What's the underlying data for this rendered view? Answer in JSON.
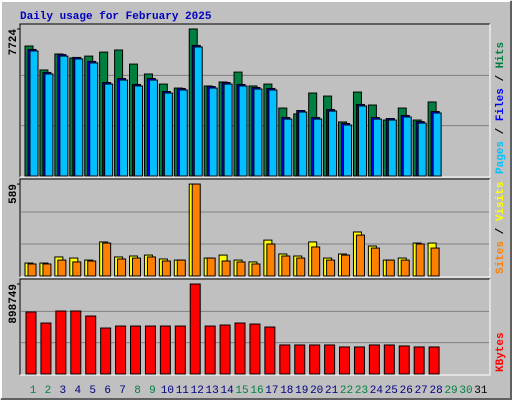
{
  "chart_data": [
    {
      "type": "bar",
      "title": "Daily usage for February 2025",
      "legend_separator": " / ",
      "ylim": [
        0,
        7934
      ],
      "yticks": [
        7724
      ],
      "series": [
        {
          "name": "Hits",
          "color": "#008040",
          "values": [
            6830,
            5570,
            6410,
            6200,
            6300,
            6510,
            6620,
            5880,
            5360,
            4830,
            4620,
            7724,
            4730,
            4940,
            5460,
            4730,
            4830,
            3570,
            3260,
            4360,
            4200,
            2840,
            4410,
            3730,
            2940,
            3570,
            2940,
            3890,
            null,
            null,
            null
          ]
        },
        {
          "name": "Files",
          "color": "#0000ff",
          "values": [
            6650,
            5440,
            6380,
            6230,
            6020,
            4910,
            5120,
            4810,
            5120,
            4440,
            4600,
            6860,
            4700,
            4910,
            4810,
            4650,
            4600,
            3070,
            3440,
            3070,
            3490,
            2760,
            3760,
            3070,
            3020,
            3180,
            2860,
            3390,
            null,
            null,
            null
          ]
        },
        {
          "name": "Pages",
          "color": "#00c0ff",
          "values": [
            6570,
            5360,
            6300,
            6150,
            5940,
            4830,
            5040,
            4730,
            5040,
            4360,
            4520,
            6780,
            4620,
            4830,
            4730,
            4570,
            4520,
            2990,
            3360,
            2990,
            3410,
            2680,
            3680,
            2990,
            2940,
            3100,
            2780,
            3310,
            null,
            null,
            null
          ]
        }
      ]
    },
    {
      "type": "bar",
      "legend_separator": " / ",
      "ylim": [
        0,
        615
      ],
      "yticks": [
        589
      ],
      "series": [
        {
          "name": "Visits",
          "color": "#ffff00",
          "values": [
            83,
            83,
            122,
            115,
            102,
            218,
            122,
            128,
            134,
            109,
            102,
            589,
            115,
            134,
            102,
            90,
            230,
            141,
            128,
            218,
            115,
            141,
            282,
            192,
            102,
            115,
            211,
            211,
            null,
            null,
            null
          ]
        },
        {
          "name": "Sites",
          "color": "#ff8000",
          "values": [
            77,
            77,
            102,
            90,
            96,
            211,
            109,
            115,
            122,
            96,
            102,
            589,
            115,
            96,
            90,
            77,
            205,
            128,
            115,
            186,
            102,
            134,
            262,
            179,
            102,
            102,
            205,
            179,
            null,
            null,
            null
          ]
        }
      ]
    },
    {
      "type": "bar",
      "ylim": [
        0,
        938700
      ],
      "yticks": [
        898749
      ],
      "categories": [
        "1",
        "2",
        "3",
        "4",
        "5",
        "6",
        "7",
        "8",
        "9",
        "10",
        "11",
        "12",
        "13",
        "14",
        "15",
        "16",
        "17",
        "18",
        "19",
        "20",
        "21",
        "22",
        "23",
        "24",
        "25",
        "26",
        "27",
        "28",
        "29",
        "30",
        "31"
      ],
      "category_colors": [
        "#008040",
        "#008040",
        "#000080",
        "#000080",
        "#000080",
        "#000080",
        "#000080",
        "#008040",
        "#008040",
        "#000080",
        "#000080",
        "#000080",
        "#000080",
        "#000080",
        "#008040",
        "#008040",
        "#000080",
        "#000080",
        "#000080",
        "#000080",
        "#000080",
        "#008040",
        "#008040",
        "#000080",
        "#000080",
        "#000080",
        "#000080",
        "#000080",
        "#008040",
        "#008040",
        "#000000"
      ],
      "series": [
        {
          "name": "KBytes",
          "color": "#ff0000",
          "values": [
            619000,
            509000,
            629000,
            629000,
            579000,
            459000,
            479000,
            479000,
            479000,
            479000,
            479000,
            898749,
            479000,
            489000,
            509000,
            499000,
            469000,
            290000,
            290000,
            290000,
            290000,
            270000,
            270000,
            290000,
            290000,
            280000,
            270000,
            270000,
            null,
            null,
            null
          ]
        }
      ]
    }
  ]
}
